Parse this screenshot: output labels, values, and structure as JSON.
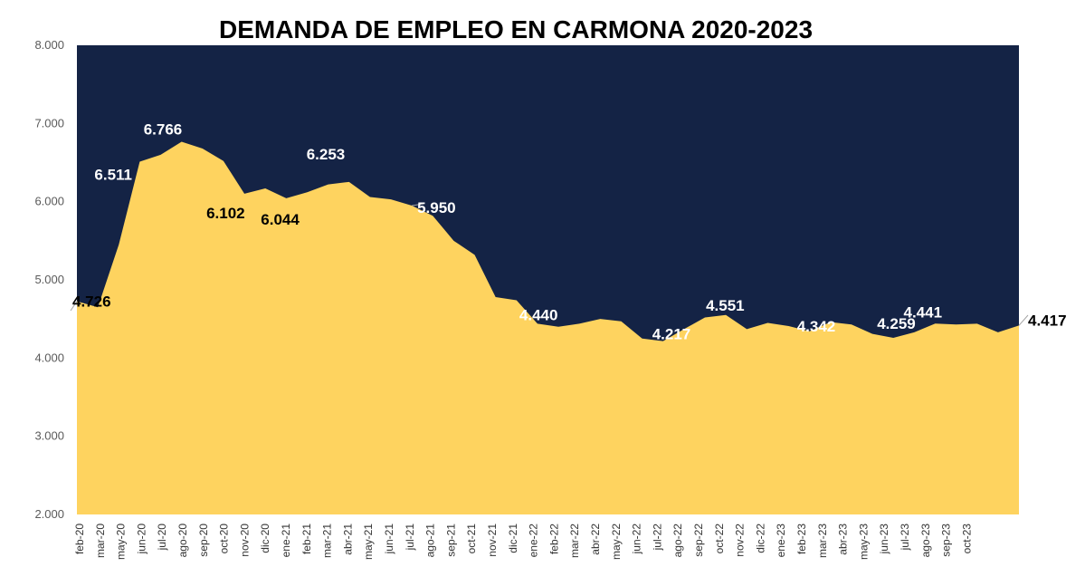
{
  "chart_data": {
    "type": "area",
    "title": "DEMANDA DE EMPLEO EN CARMONA 2020-2023",
    "xlabel": "",
    "ylabel": "",
    "ylim": [
      2000,
      8000
    ],
    "ytick_labels": [
      "2.000",
      "3.000",
      "4.000",
      "5.000",
      "6.000",
      "7.000",
      "8.000"
    ],
    "yticks": [
      2000,
      3000,
      4000,
      5000,
      6000,
      7000,
      8000
    ],
    "x_tick_labels": [
      "feb-20",
      "mar-20",
      "may-20",
      "jun-20",
      "jul-20",
      "ago-20",
      "sep-20",
      "oct-20",
      "nov-20",
      "dic-20",
      "ene-21",
      "feb-21",
      "mar-21",
      "abr-21",
      "may-21",
      "jun-21",
      "jul-21",
      "ago-21",
      "sep-21",
      "oct-21",
      "nov-21",
      "dic-21",
      "ene-22",
      "feb-22",
      "mar-22",
      "abr-22",
      "may-22",
      "jun-22",
      "jul-22",
      "ago-22",
      "sep-22",
      "oct-22",
      "nov-22",
      "dic-22",
      "ene-23",
      "feb-23",
      "mar-23",
      "abr-23",
      "may-23",
      "jun-23",
      "jul-23",
      "ago-23",
      "sep-23",
      "oct-23"
    ],
    "values": [
      4726,
      4650,
      5450,
      6511,
      6600,
      6766,
      6680,
      6520,
      6102,
      6170,
      6044,
      6120,
      6220,
      6253,
      6060,
      6030,
      5950,
      5820,
      5500,
      5320,
      4780,
      4740,
      4440,
      4400,
      4440,
      4500,
      4470,
      4250,
      4217,
      4370,
      4520,
      4551,
      4370,
      4450,
      4410,
      4342,
      4460,
      4430,
      4310,
      4259,
      4330,
      4441,
      4430,
      4440,
      4330,
      4417
    ],
    "data_labels": [
      {
        "index": 0,
        "text": "4.726",
        "color": "#000000"
      },
      {
        "index": 3,
        "text": "6.511",
        "color": "#ffffff"
      },
      {
        "index": 5,
        "text": "6.766",
        "color": "#ffffff"
      },
      {
        "index": 8,
        "text": "6.102",
        "color": "#000000"
      },
      {
        "index": 10,
        "text": "6.044",
        "color": "#000000"
      },
      {
        "index": 13,
        "text": "6.253",
        "color": "#ffffff"
      },
      {
        "index": 16,
        "text": "5.950",
        "color": "#ffffff"
      },
      {
        "index": 22,
        "text": "4.440",
        "color": "#ffffff"
      },
      {
        "index": 28,
        "text": "4.217",
        "color": "#ffffff"
      },
      {
        "index": 31,
        "text": "4.551",
        "color": "#ffffff"
      },
      {
        "index": 35,
        "text": "4.342",
        "color": "#ffffff"
      },
      {
        "index": 39,
        "text": "4.259",
        "color": "#ffffff"
      },
      {
        "index": 41,
        "text": "4.441",
        "color": "#ffffff"
      },
      {
        "index": 45,
        "text": "4.417",
        "color": "#000000"
      }
    ],
    "grid": false,
    "legend": "none",
    "colors": {
      "area": "#fed35f",
      "plot_background": "#142345",
      "page_background": "#ffffff"
    }
  }
}
